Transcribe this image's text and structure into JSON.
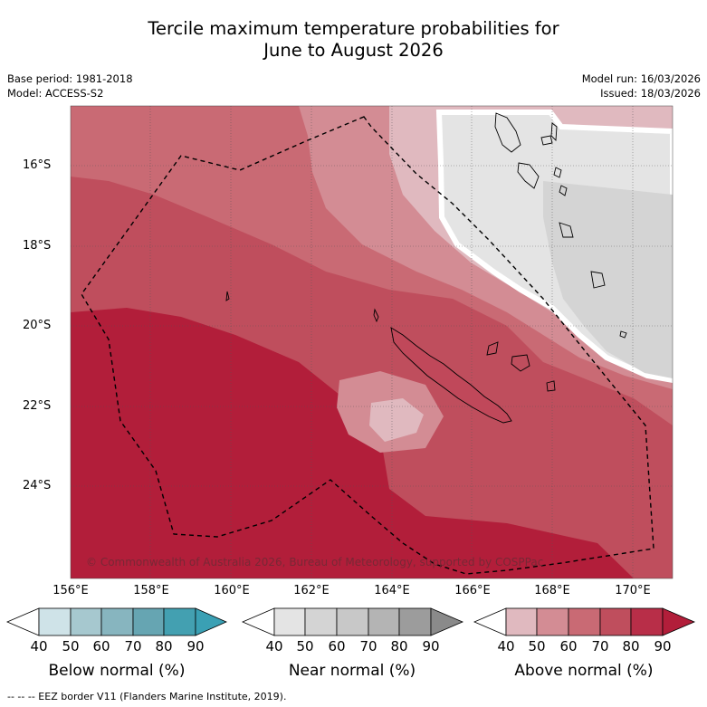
{
  "title": {
    "line1": "Tercile maximum temperature probabilities for",
    "line2": "June to August 2026"
  },
  "metadata": {
    "base_period": "Base period: 1981-2018",
    "model": "Model: ACCESS-S2",
    "model_run": "Model run: 16/03/2026",
    "issued": "Issued: 18/03/2026"
  },
  "map": {
    "latitude_labels": [
      "16°S",
      "18°S",
      "20°S",
      "22°S",
      "24°S"
    ],
    "longitude_labels": [
      "156°E",
      "158°E",
      "160°E",
      "162°E",
      "164°E",
      "166°E",
      "168°E",
      "170°E"
    ],
    "copyright": "© Commonwealth of Australia 2026, Bureau of Meteorology, supported by COSPPac",
    "colors": {
      "above_40": "#e0b9bf",
      "above_50": "#d38c94",
      "above_60": "#c96a74",
      "above_70": "#bf4e5d",
      "above_80": "#b21e3a",
      "near_40": "#e4e4e4",
      "near_50": "#d4d4d4"
    }
  },
  "legend": {
    "below": {
      "caption": "Below normal (%)",
      "ticks": [
        "40",
        "50",
        "60",
        "70",
        "80",
        "90"
      ],
      "colors": [
        "#cfe3e8",
        "#a6c8cf",
        "#87b5bf",
        "#66a5b2",
        "#43a0b1",
        "#3aa0b4"
      ]
    },
    "near": {
      "caption": "Near normal (%)",
      "ticks": [
        "40",
        "50",
        "60",
        "70",
        "80",
        "90"
      ],
      "colors": [
        "#e4e4e4",
        "#d4d4d4",
        "#c8c8c8",
        "#b4b4b4",
        "#9c9c9c",
        "#8a8a8a"
      ]
    },
    "above": {
      "caption": "Above normal (%)",
      "ticks": [
        "40",
        "50",
        "60",
        "70",
        "80",
        "90"
      ],
      "colors": [
        "#e0b9bf",
        "#d38c94",
        "#c96a74",
        "#bf4e5d",
        "#b82e48",
        "#b21e3a"
      ]
    }
  },
  "footnote": "--  --  -- EEZ border V11 (Flanders Marine Institute, 2019)."
}
